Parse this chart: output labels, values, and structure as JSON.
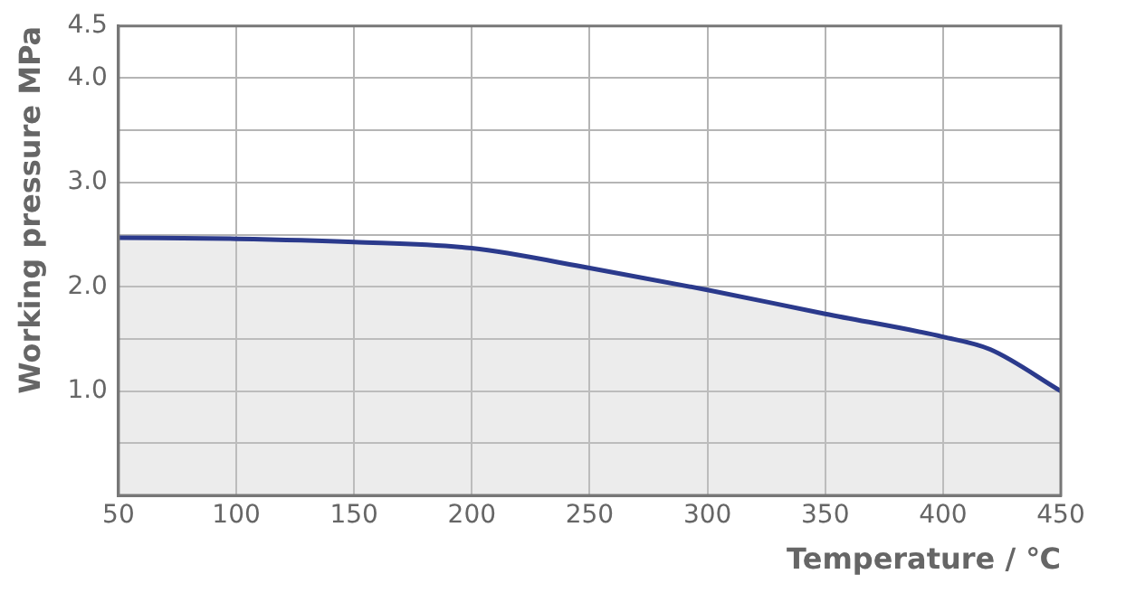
{
  "chart_data": {
    "type": "area",
    "xlabel": "Temperature / ℃",
    "ylabel": "Working pressure MPa",
    "x": [
      50,
      100,
      150,
      200,
      250,
      300,
      350,
      400,
      420,
      450
    ],
    "series": [
      {
        "color": "#2b3a8c",
        "values": [
          2.47,
          2.46,
          2.43,
          2.37,
          2.18,
          1.97,
          1.74,
          1.52,
          1.4,
          1.0
        ]
      }
    ],
    "xlim": [
      50,
      450
    ],
    "xticks": [
      50,
      100,
      150,
      200,
      250,
      300,
      350,
      400,
      450
    ],
    "ylim": [
      0,
      4.5
    ],
    "yticks": [
      {
        "value": 0,
        "label": null
      },
      {
        "value": 0.5,
        "label": null
      },
      {
        "value": 1,
        "label": "1.0"
      },
      {
        "value": 1.5,
        "label": null
      },
      {
        "value": 2,
        "label": "2.0"
      },
      {
        "value": 2.5,
        "label": null
      },
      {
        "value": 3,
        "label": "3.0"
      },
      {
        "value": 3.5,
        "label": null
      },
      {
        "value": 4,
        "label": "4.0"
      },
      4.5
    ],
    "grid": true,
    "legend": false,
    "marker": "none"
  }
}
